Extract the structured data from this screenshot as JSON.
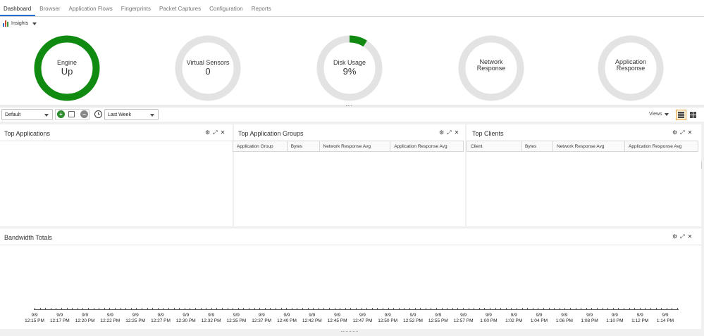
{
  "nav": {
    "tabs": [
      "Dashboard",
      "Browser",
      "Application Flows",
      "Fingerprints",
      "Packet Captures",
      "Configuration",
      "Reports"
    ],
    "active": "Dashboard"
  },
  "insights": {
    "label": "Insights"
  },
  "gauges": [
    {
      "title": "Engine",
      "value": "Up",
      "fill_fraction": 1.0,
      "color": "#118a11"
    },
    {
      "title": "Virtual Sensors",
      "value": "0",
      "fill_fraction": 0.0,
      "color": "#118a11"
    },
    {
      "title": "Disk Usage",
      "value": "9%",
      "fill_fraction": 0.09,
      "color": "#118a11"
    },
    {
      "title": "Network Response",
      "value": "",
      "fill_fraction": 0.0,
      "color": "#118a11"
    },
    {
      "title": "Application Response",
      "value": "",
      "fill_fraction": 0.0,
      "color": "#118a11"
    }
  ],
  "toolbar": {
    "view_select": "Default",
    "time_select": "Last Week",
    "views_label": "Views"
  },
  "widgets": {
    "top_applications": {
      "title": "Top Applications"
    },
    "top_application_groups": {
      "title": "Top Application Groups",
      "columns": [
        "Application Group",
        "Bytes",
        "Network Response Avg",
        "Application Response Avg"
      ]
    },
    "top_clients": {
      "title": "Top Clients",
      "columns": [
        "Client",
        "Bytes",
        "Network Response Avg",
        "Application Response Avg"
      ]
    },
    "bandwidth_totals": {
      "title": "Bandwidth Totals"
    }
  },
  "chart_data": {
    "type": "line",
    "title": "Bandwidth Totals",
    "x": [
      [
        "9/9",
        "12:15 PM"
      ],
      [
        "9/9",
        "12:17 PM"
      ],
      [
        "9/9",
        "12:20 PM"
      ],
      [
        "9/9",
        "12:22 PM"
      ],
      [
        "9/9",
        "12:25 PM"
      ],
      [
        "9/9",
        "12:27 PM"
      ],
      [
        "9/9",
        "12:30 PM"
      ],
      [
        "9/9",
        "12:32 PM"
      ],
      [
        "9/9",
        "12:35 PM"
      ],
      [
        "9/9",
        "12:37 PM"
      ],
      [
        "9/9",
        "12:40 PM"
      ],
      [
        "9/9",
        "12:42 PM"
      ],
      [
        "9/9",
        "12:45 PM"
      ],
      [
        "9/9",
        "12:47 PM"
      ],
      [
        "9/9",
        "12:50 PM"
      ],
      [
        "9/9",
        "12:52 PM"
      ],
      [
        "9/9",
        "12:55 PM"
      ],
      [
        "9/9",
        "12:57 PM"
      ],
      [
        "9/9",
        "1:00 PM"
      ],
      [
        "9/9",
        "1:02 PM"
      ],
      [
        "9/9",
        "1:04 PM"
      ],
      [
        "9/9",
        "1:06 PM"
      ],
      [
        "9/9",
        "1:08 PM"
      ],
      [
        "9/9",
        "1:10 PM"
      ],
      [
        "9/9",
        "1:12 PM"
      ],
      [
        "9/9",
        "1:14 PM"
      ]
    ],
    "series": []
  }
}
